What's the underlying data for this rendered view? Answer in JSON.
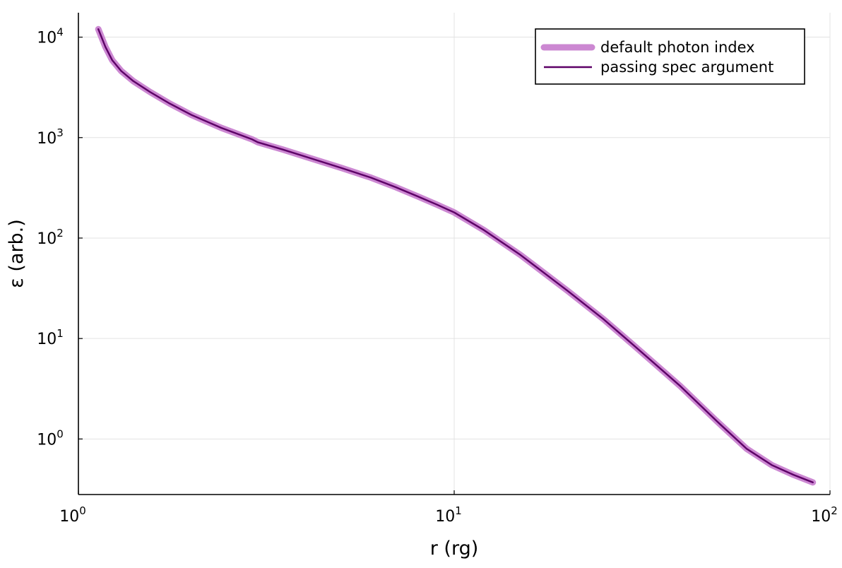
{
  "chart_data": {
    "type": "line",
    "xscale": "log",
    "yscale": "log",
    "xlabel": "r (rg)",
    "ylabel": "ε (arb.)",
    "xlim": [
      1.0,
      100
    ],
    "ylim": [
      0.28,
      17500
    ],
    "grid": true,
    "legend_position": "top-right",
    "x_ticks": [
      {
        "base": "10",
        "exp": "0",
        "value": 1
      },
      {
        "base": "10",
        "exp": "1",
        "value": 10
      },
      {
        "base": "10",
        "exp": "2",
        "value": 100
      }
    ],
    "y_ticks": [
      {
        "base": "10",
        "exp": "0",
        "value": 1
      },
      {
        "base": "10",
        "exp": "1",
        "value": 10
      },
      {
        "base": "10",
        "exp": "2",
        "value": 100
      },
      {
        "base": "10",
        "exp": "3",
        "value": 1000
      },
      {
        "base": "10",
        "exp": "4",
        "value": 10000
      }
    ],
    "x": [
      1.13,
      1.18,
      1.23,
      1.3,
      1.4,
      1.55,
      1.75,
      2.0,
      2.4,
      2.9,
      3.0,
      3.5,
      4.0,
      5.0,
      6.0,
      7.0,
      8.0,
      9.0,
      10.0,
      12.0,
      15.0,
      20.0,
      25.0,
      30.0,
      40.0,
      50.0,
      60.0,
      70.0,
      80.0,
      90.0
    ],
    "series": [
      {
        "name": "default photon index",
        "color": "#cc88d2",
        "values": [
          12000,
          8000,
          5900,
          4600,
          3650,
          2850,
          2180,
          1680,
          1250,
          960,
          900,
          760,
          650,
          500,
          400,
          320,
          260,
          215,
          180,
          120,
          68,
          30,
          15.5,
          8.6,
          3.35,
          1.5,
          0.8,
          0.55,
          0.44,
          0.37
        ]
      },
      {
        "name": "passing spec argument",
        "color": "#5c0066",
        "values": [
          12000,
          8000,
          5900,
          4600,
          3650,
          2850,
          2180,
          1680,
          1250,
          960,
          900,
          760,
          650,
          500,
          400,
          320,
          260,
          215,
          180,
          120,
          68,
          30,
          15.5,
          8.6,
          3.35,
          1.5,
          0.8,
          0.55,
          0.44,
          0.37
        ]
      }
    ]
  }
}
